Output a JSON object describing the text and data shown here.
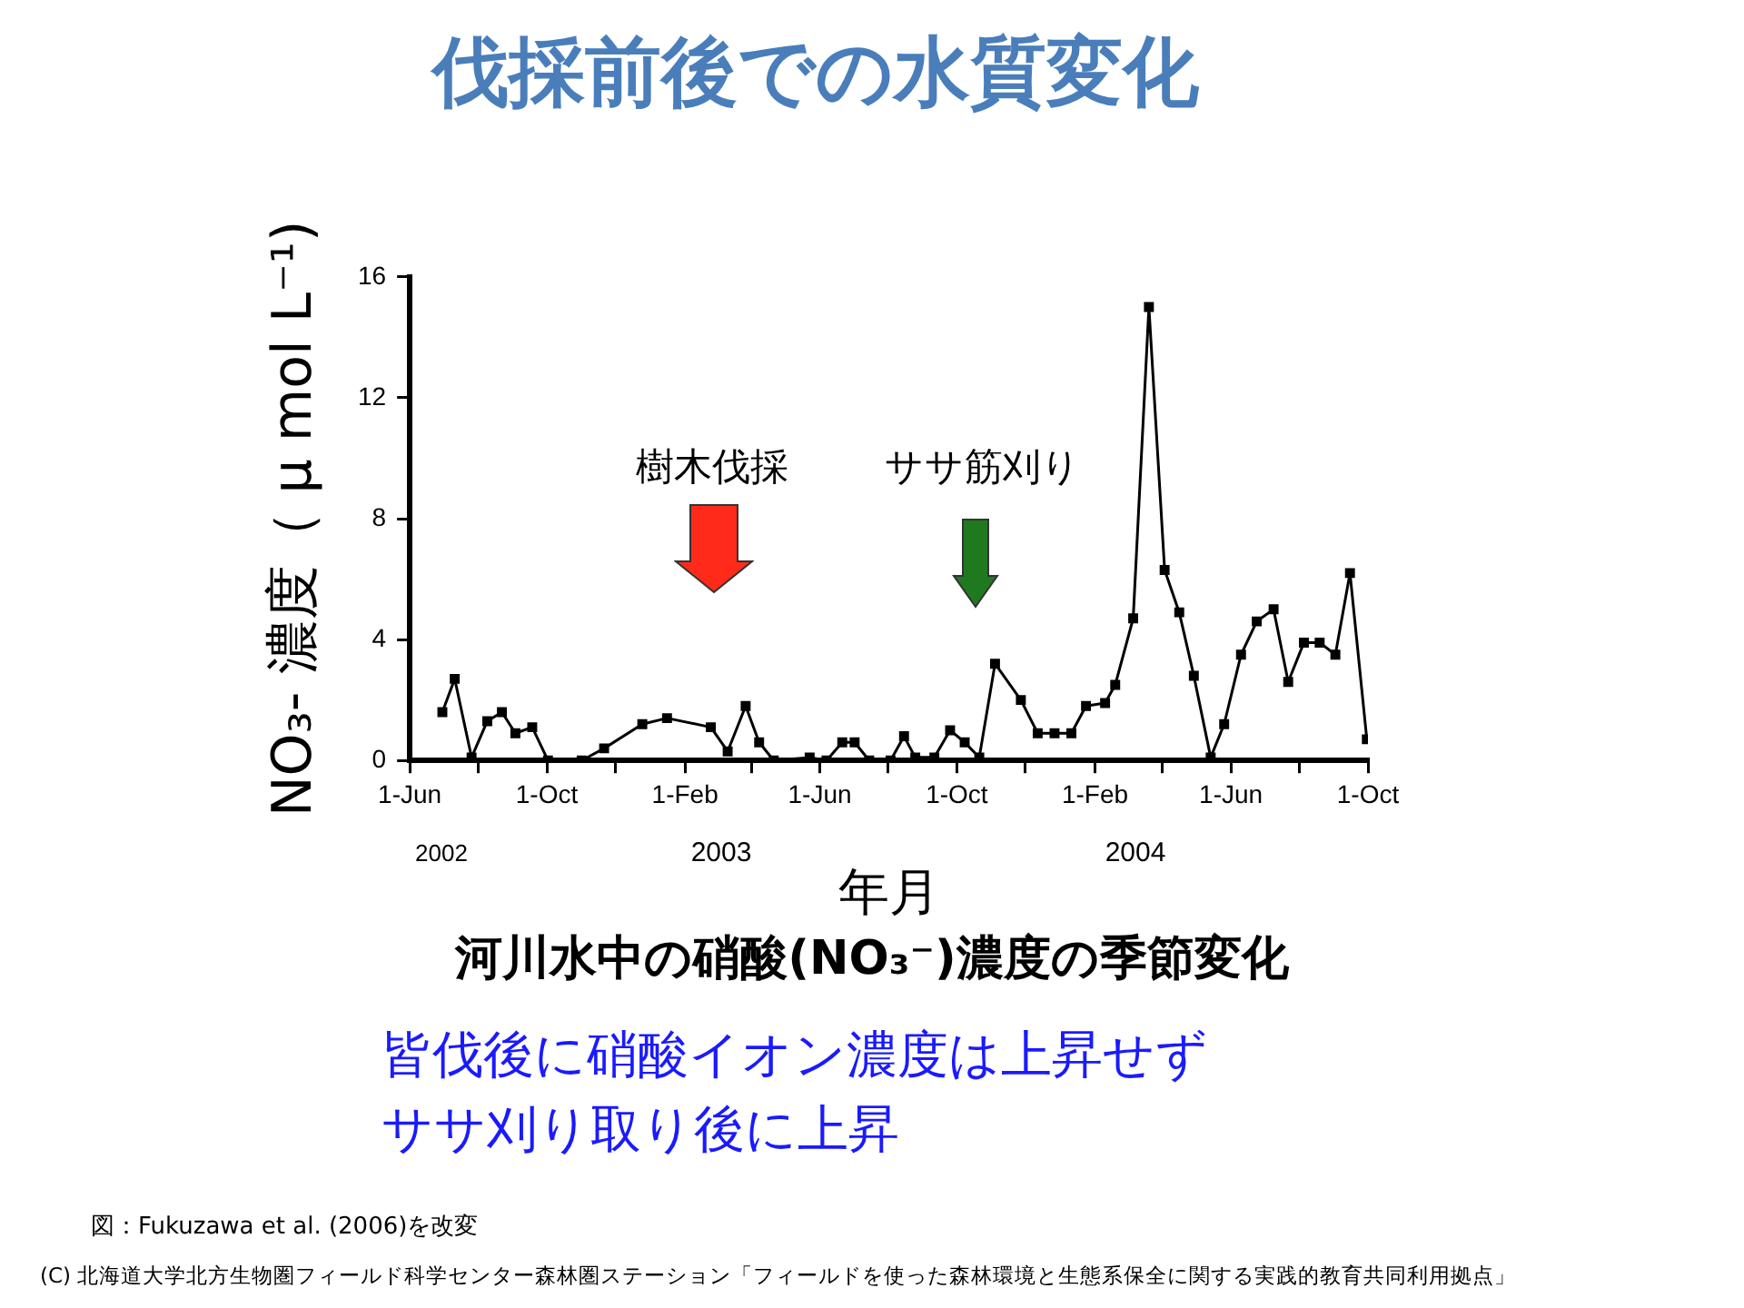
{
  "chart_data": {
    "type": "line",
    "title": "伐採前後での水質変化",
    "subtitle": "河川水中の硝酸(NO₃⁻)濃度の季節変化",
    "xlabel": "年月",
    "ylabel": "NO₃- 濃度（ μ mol L⁻¹)",
    "x": [
      "2002-06-30",
      "2002-07-11",
      "2002-07-26",
      "2002-08-09",
      "2002-08-22",
      "2002-09-03",
      "2002-09-18",
      "2002-10-02",
      "2002-11-01",
      "2002-11-21",
      "2002-12-25",
      "2003-01-16",
      "2003-02-24",
      "2003-03-11",
      "2003-03-27",
      "2003-04-08",
      "2003-04-21",
      "2003-05-23",
      "2003-06-07",
      "2003-06-21",
      "2003-07-02",
      "2003-07-15",
      "2003-08-03",
      "2003-08-15",
      "2003-08-25",
      "2003-09-11",
      "2003-09-25",
      "2003-10-08",
      "2003-10-21",
      "2003-11-04",
      "2003-11-27",
      "2003-12-12",
      "2003-12-27",
      "2004-01-11",
      "2004-01-24",
      "2004-02-10",
      "2004-02-19",
      "2004-03-06",
      "2004-03-20",
      "2004-04-03",
      "2004-04-16",
      "2004-04-29",
      "2004-05-14",
      "2004-05-26",
      "2004-06-10",
      "2004-06-24",
      "2004-07-09",
      "2004-07-22",
      "2004-08-05",
      "2004-08-19",
      "2004-09-02",
      "2004-09-15",
      "2004-09-30"
    ],
    "series": [
      {
        "color": "#000000",
        "values": [
          1.6,
          2.7,
          0.1,
          1.3,
          1.6,
          0.9,
          1.1,
          0,
          0,
          0.4,
          1.2,
          1.4,
          1.1,
          0.3,
          1.8,
          0.6,
          0,
          0.1,
          0,
          0.6,
          0.6,
          0,
          0,
          0.8,
          0.1,
          0.1,
          1.0,
          0.6,
          0.1,
          3.2,
          2.0,
          0.9,
          0.9,
          0.9,
          1.8,
          1.9,
          2.5,
          4.7,
          15.0,
          6.3,
          4.9,
          2.8,
          0.1,
          1.2,
          3.5,
          4.6,
          5.0,
          2.6,
          3.9,
          3.9,
          3.5,
          6.2,
          0.7
        ]
      }
    ],
    "xlim": [
      "2002-06-01",
      "2004-10-01"
    ],
    "xticks": [
      {
        "value": "2002-06-01",
        "label": "1-Jun"
      },
      {
        "value": "2002-08-01",
        "label": null
      },
      {
        "value": "2002-10-01",
        "label": "1-Oct"
      },
      {
        "value": "2002-12-01",
        "label": null
      },
      {
        "value": "2003-02-01",
        "label": "1-Feb"
      },
      {
        "value": "2003-04-01",
        "label": null
      },
      {
        "value": "2003-06-01",
        "label": "1-Jun"
      },
      {
        "value": "2003-08-01",
        "label": null
      },
      {
        "value": "2003-10-01",
        "label": "1-Oct"
      },
      {
        "value": "2003-12-01",
        "label": null
      },
      {
        "value": "2004-02-01",
        "label": "1-Feb"
      },
      {
        "value": "2004-04-01",
        "label": null
      },
      {
        "value": "2004-06-01",
        "label": "1-Jun"
      },
      {
        "value": "2004-08-01",
        "label": null
      },
      {
        "value": "2004-10-01",
        "label": "1-Oct"
      }
    ],
    "ylim": [
      0,
      16
    ],
    "yticks": [
      0,
      4,
      8,
      12,
      16
    ],
    "marker": "square",
    "line_style": "solid",
    "legend": false,
    "annotations": [
      "樹木伐採",
      "ササ筋刈り",
      "2002",
      "2003",
      "2004",
      "皆伐後に硝酸イオン濃度は上昇せず",
      "ササ刈り取り後に上昇",
      "図：Fukuzawa et al. (2006)を改変",
      "(C) 北海道大学北方生物圏フィールド科学センター森林圏ステーション「フィールドを使った森林環境と生態系保全に関する実践的教育共同利用拠点」"
    ]
  }
}
